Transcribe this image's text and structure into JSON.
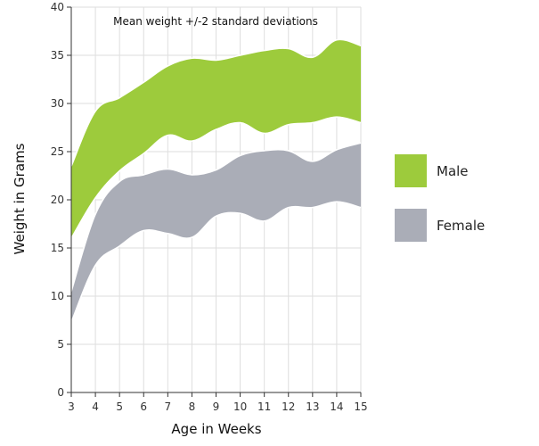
{
  "chart_data": {
    "type": "area",
    "title": "Mean weight +/-2 standard deviations",
    "xlabel": "Age in Weeks",
    "ylabel": "Weight in Grams",
    "x": [
      3,
      4,
      5,
      6,
      7,
      8,
      9,
      10,
      11,
      12,
      13,
      14,
      15
    ],
    "xlim": [
      3,
      15
    ],
    "ylim": [
      0,
      40
    ],
    "xticks": [
      "3",
      "4",
      "5",
      "6",
      "7",
      "8",
      "9",
      "10",
      "11",
      "12",
      "13",
      "14",
      "15"
    ],
    "yticks": [
      "0",
      "5",
      "10",
      "15",
      "20",
      "25",
      "30",
      "35",
      "40"
    ],
    "grid": true,
    "legend_position": "right",
    "series": [
      {
        "name": "Male",
        "color": "#9dcb3c",
        "upper": [
          23.5,
          29.2,
          30.6,
          32.2,
          33.9,
          34.7,
          34.5,
          35.0,
          35.5,
          35.7,
          34.8,
          36.6,
          36.0
        ],
        "lower": [
          16.0,
          20.2,
          23.0,
          24.8,
          26.7,
          26.1,
          27.3,
          28.0,
          26.9,
          27.8,
          28.0,
          28.6,
          28.0
        ]
      },
      {
        "name": "Female",
        "color": "#aaadb7",
        "upper": [
          10.5,
          18.5,
          21.9,
          22.6,
          23.2,
          22.6,
          23.1,
          24.6,
          25.1,
          25.1,
          24.0,
          25.2,
          25.9
        ],
        "lower": [
          7.3,
          13.2,
          15.2,
          16.8,
          16.5,
          16.1,
          18.3,
          18.6,
          17.8,
          19.2,
          19.2,
          19.8,
          19.2
        ]
      }
    ],
    "overlap_color": "#6b9236"
  }
}
